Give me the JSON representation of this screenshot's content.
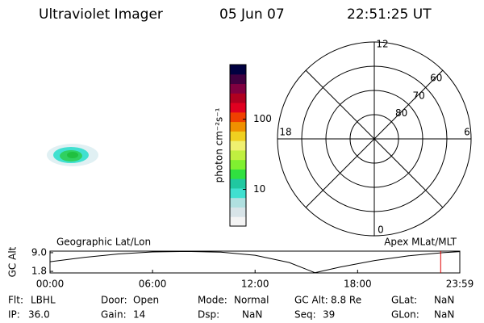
{
  "header": {
    "title": "Ultraviolet Imager",
    "date": "05 Jun 07",
    "time": "22:51:25 UT"
  },
  "colorbar": {
    "label": "photon cm⁻²s⁻¹",
    "log": true,
    "lim": [
      3,
      600
    ],
    "ticks": [
      10,
      100
    ],
    "colors": [
      "#f4f4f4",
      "#d8e4e8",
      "#b0e0e0",
      "#40e0d0",
      "#20c8a0",
      "#30e040",
      "#80f030",
      "#c0f040",
      "#f0f070",
      "#f0d020",
      "#f09000",
      "#f04000",
      "#e00020",
      "#b00020",
      "#800040",
      "#400040",
      "#000040"
    ]
  },
  "polar": {
    "mlt_labels": {
      "top": "12",
      "left": "18",
      "right": "6",
      "bottom": "0"
    },
    "lat_labels": [
      60,
      70,
      80
    ]
  },
  "gc_alt": {
    "ylabel": "GC Alt",
    "title_left": "Geographic Lat/Lon",
    "title_right": "Apex MLat/MLT",
    "ylim": [
      1.2,
      9.6
    ],
    "yticks": [
      {
        "value": 9,
        "label": "9.0"
      },
      {
        "value": 1.8,
        "label": "1.8"
      }
    ],
    "xlim": [
      0,
      23.98
    ],
    "xticks": [
      {
        "value": 0,
        "label": "00:00"
      },
      {
        "value": 6,
        "label": "06:00"
      },
      {
        "value": 12,
        "label": "12:00"
      },
      {
        "value": 18,
        "label": "18:00"
      },
      {
        "value": 23.98,
        "label": "23:59"
      }
    ],
    "x": [
      0,
      2,
      4,
      6,
      8,
      10,
      12,
      14,
      15.5,
      17,
      19,
      21,
      23,
      23.98
    ],
    "values": [
      5.5,
      7.2,
      8.5,
      9.3,
      9.5,
      9.2,
      8.0,
      5.2,
      1.3,
      3.5,
      6.0,
      7.8,
      9.0,
      9.4
    ],
    "current_hour": 22.86
  },
  "footer": [
    [
      {
        "label": "Flt:",
        "value": "LBHL"
      },
      {
        "label": "Door:",
        "value": "Open"
      },
      {
        "label": "Mode:",
        "value": "Normal"
      },
      {
        "label": "GC Alt:",
        "value": "8.8 Re"
      },
      {
        "label": "GLat:",
        "value": "NaN"
      }
    ],
    [
      {
        "label": "IP:",
        "value": "36.0"
      },
      {
        "label": "Gain:",
        "value": "14"
      },
      {
        "label": "Dsp:",
        "value": "NaN"
      },
      {
        "label": "Seq:",
        "value": "39"
      },
      {
        "label": "GLon:",
        "value": "NaN"
      }
    ]
  ]
}
